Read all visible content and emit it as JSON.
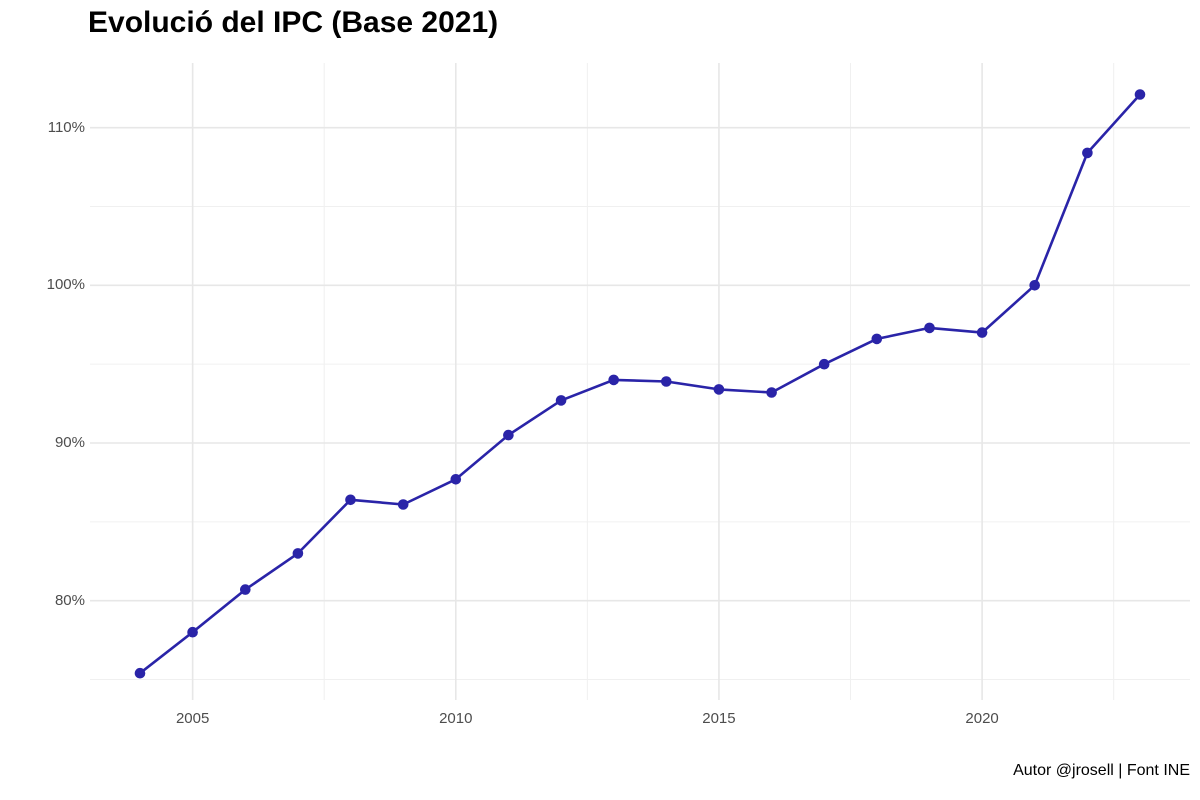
{
  "title": "Evolució del IPC (Base 2021)",
  "caption": "Autor @jrosell | Font INE",
  "colors": {
    "line": "#2a24a8",
    "point": "#2a24a8",
    "grid_major": "#e7e7e7",
    "grid_minor": "#f0f0f0",
    "axis_text": "#4d4d4d",
    "title_text": "#000000",
    "background": "#ffffff"
  },
  "chart_data": {
    "type": "line",
    "title": "Evolució del IPC (Base 2021)",
    "caption": "Autor @jrosell | Font INE",
    "xlabel": "",
    "ylabel": "",
    "legend": false,
    "grid": "major+minor",
    "marker": "point",
    "series": [
      {
        "name": "IPC",
        "x": [
          2004,
          2005,
          2006,
          2007,
          2008,
          2009,
          2010,
          2011,
          2012,
          2013,
          2014,
          2015,
          2016,
          2017,
          2018,
          2019,
          2020,
          2021,
          2022,
          2023
        ],
        "values": [
          75.4,
          78.0,
          80.7,
          83.0,
          86.4,
          86.1,
          87.7,
          90.5,
          92.7,
          94.0,
          93.9,
          93.4,
          93.2,
          95.0,
          96.6,
          97.3,
          97.0,
          100.0,
          108.4,
          112.1
        ]
      }
    ],
    "x_ticks": [
      {
        "value": 2005,
        "label": "2005"
      },
      {
        "value": 2010,
        "label": "2010"
      },
      {
        "value": 2015,
        "label": "2015"
      },
      {
        "value": 2020,
        "label": "2020"
      }
    ],
    "y_ticks": [
      {
        "value": 80,
        "label": "80%"
      },
      {
        "value": 90,
        "label": "90%"
      },
      {
        "value": 100,
        "label": "100%"
      },
      {
        "value": 110,
        "label": "110%"
      }
    ],
    "xlim": [
      2003.05,
      2023.95
    ],
    "ylim": [
      73.7,
      114.1
    ]
  }
}
